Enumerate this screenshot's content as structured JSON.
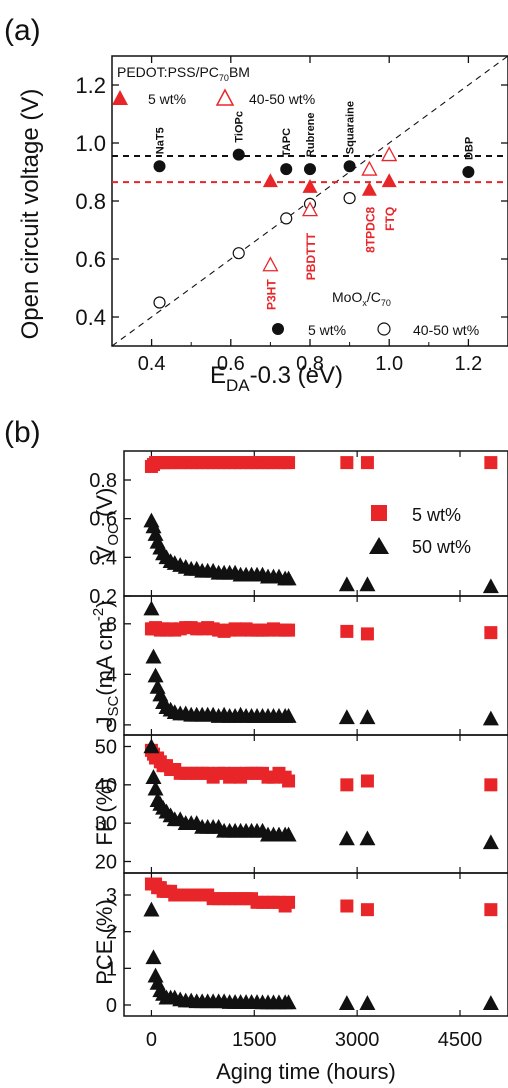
{
  "panels": {
    "a": "(a)",
    "b": "(b)"
  },
  "colors": {
    "red": "#e8262a",
    "black": "#111111",
    "red_dash": "#e8262a",
    "black_dash": "#111111"
  },
  "chart_data": [
    {
      "type": "scatter",
      "panel": "(a)",
      "xlabel_main": "E",
      "xlabel_sub": "DA",
      "xlabel_rest": "-0.3 (eV)",
      "ylabel": "Open circuit voltage (V)",
      "xlim": [
        0.3,
        1.3
      ],
      "ylim": [
        0.3,
        1.3
      ],
      "x_ticks": [
        0.4,
        0.6,
        0.8,
        1.0,
        1.2
      ],
      "x_tick_labels": [
        "0.4",
        "0.6",
        "0.8",
        "1.0",
        "1.2"
      ],
      "y_ticks": [
        0.4,
        0.6,
        0.8,
        1.0,
        1.2
      ],
      "y_tick_labels": [
        "0.4",
        "0.6",
        "0.8",
        "1.0",
        "1.2"
      ],
      "legend_pedot": {
        "title": "PEDOT:PSS/PC",
        "title_sub": "70",
        "title_rest": "BM",
        "filled_label": "5 wt%",
        "open_label": "40-50 wt%"
      },
      "legend_moox": {
        "title_a": "MoO",
        "title_sub1": "x",
        "title_b": "/C",
        "title_sub2": "70",
        "filled_label": "5 wt%",
        "open_label": "40-50 wt%"
      },
      "dashed_lines": {
        "black_y": 0.955,
        "red_y": 0.865,
        "diagonal": "y = x"
      },
      "series": [
        {
          "name": "MoOx/C70 5 wt%",
          "marker": "filled-circle",
          "color": "black",
          "points": [
            {
              "x": 0.42,
              "y": 0.92,
              "label": "NaT5"
            },
            {
              "x": 0.62,
              "y": 0.96,
              "label": "TiOPc"
            },
            {
              "x": 0.74,
              "y": 0.91,
              "label": "TAPC"
            },
            {
              "x": 0.8,
              "y": 0.91,
              "label": "Rubrene"
            },
            {
              "x": 0.9,
              "y": 0.92,
              "label": "Squaraine"
            },
            {
              "x": 1.2,
              "y": 0.9,
              "label": "DBP"
            }
          ]
        },
        {
          "name": "MoOx/C70 40-50 wt%",
          "marker": "open-circle",
          "color": "black",
          "points": [
            {
              "x": 0.42,
              "y": 0.45
            },
            {
              "x": 0.62,
              "y": 0.62
            },
            {
              "x": 0.74,
              "y": 0.74
            },
            {
              "x": 0.8,
              "y": 0.79
            },
            {
              "x": 0.9,
              "y": 0.81
            }
          ]
        },
        {
          "name": "PEDOT:PSS/PC70BM 5 wt%",
          "marker": "filled-triangle",
          "color": "red",
          "points": [
            {
              "x": 0.7,
              "y": 0.87
            },
            {
              "x": 0.8,
              "y": 0.85
            },
            {
              "x": 0.95,
              "y": 0.84
            },
            {
              "x": 1.0,
              "y": 0.87
            }
          ]
        },
        {
          "name": "PEDOT:PSS/PC70BM 40-50 wt%",
          "marker": "open-triangle",
          "color": "red",
          "points": [
            {
              "x": 0.7,
              "y": 0.58
            },
            {
              "x": 0.8,
              "y": 0.77
            },
            {
              "x": 0.95,
              "y": 0.91
            },
            {
              "x": 1.0,
              "y": 0.96
            }
          ]
        }
      ],
      "red_labels": [
        {
          "text": "P3HT",
          "x": 0.7
        },
        {
          "text": "PBDTTT",
          "x": 0.8
        },
        {
          "text": "8TPDC8",
          "x": 0.95
        },
        {
          "text": "FTQ",
          "x": 1.0
        }
      ]
    },
    {
      "type": "scatter",
      "panel": "(b)",
      "xlabel": "Aging time (hours)",
      "xlim": [
        -400,
        5200
      ],
      "x_ticks": [
        0,
        1500,
        3000,
        4500
      ],
      "x_tick_labels": [
        "0",
        "1500",
        "3000",
        "4500"
      ],
      "legend": {
        "series_5": "5 wt%",
        "series_50": "50 wt%"
      },
      "time_points": [
        0,
        30,
        60,
        90,
        130,
        170,
        220,
        280,
        340,
        420,
        500,
        580,
        660,
        740,
        820,
        900,
        980,
        1060,
        1140,
        1220,
        1300,
        1380,
        1460,
        1540,
        1620,
        1700,
        1780,
        1860,
        1950,
        2000,
        2850,
        3150,
        4950
      ],
      "subplots": [
        {
          "ylabel_a": "V",
          "ylabel_sub": "OC",
          "ylabel_b": " (V)",
          "ylim": [
            0.2,
            0.95
          ],
          "y_ticks": [
            0.2,
            0.4,
            0.6,
            0.8
          ],
          "y_tick_labels": [
            "0.2",
            "0.4",
            "0.6",
            "0.8"
          ],
          "series": [
            {
              "name": "5 wt%",
              "values": [
                0.87,
                0.88,
                0.89,
                0.89,
                0.89,
                0.89,
                0.89,
                0.89,
                0.89,
                0.89,
                0.89,
                0.89,
                0.89,
                0.89,
                0.89,
                0.89,
                0.89,
                0.89,
                0.89,
                0.89,
                0.89,
                0.89,
                0.89,
                0.89,
                0.89,
                0.89,
                0.89,
                0.89,
                0.89,
                0.89,
                0.89,
                0.89,
                0.89
              ]
            },
            {
              "name": "50 wt%",
              "values": [
                0.59,
                0.56,
                0.52,
                0.48,
                0.45,
                0.42,
                0.4,
                0.38,
                0.37,
                0.36,
                0.35,
                0.34,
                0.34,
                0.33,
                0.33,
                0.33,
                0.32,
                0.32,
                0.32,
                0.32,
                0.31,
                0.31,
                0.31,
                0.31,
                0.31,
                0.3,
                0.3,
                0.3,
                0.29,
                0.29,
                0.26,
                0.26,
                0.25
              ]
            }
          ]
        },
        {
          "ylabel_a": "J",
          "ylabel_sub": "SC",
          "ylabel_b": "(mA cm",
          "ylabel_sup": "-2",
          "ylabel_c": ")",
          "ylim": [
            -0.8,
            10.2
          ],
          "y_ticks": [
            0,
            4,
            8
          ],
          "y_tick_labels": [
            "0",
            "4",
            "8"
          ],
          "series": [
            {
              "name": "5 wt%",
              "values": [
                7.6,
                7.6,
                7.7,
                7.6,
                7.5,
                7.6,
                7.5,
                7.6,
                7.5,
                7.6,
                7.7,
                7.7,
                7.6,
                7.6,
                7.7,
                7.6,
                7.5,
                7.4,
                7.5,
                7.6,
                7.5,
                7.6,
                7.5,
                7.5,
                7.5,
                7.5,
                7.6,
                7.5,
                7.5,
                7.5,
                7.4,
                7.2,
                7.3
              ]
            },
            {
              "name": "50 wt%",
              "values": [
                9.2,
                5.4,
                3.9,
                3.0,
                2.4,
                1.8,
                1.4,
                1.2,
                1.0,
                0.9,
                0.9,
                0.8,
                0.8,
                0.8,
                0.8,
                0.8,
                0.7,
                0.8,
                0.7,
                0.7,
                0.8,
                0.7,
                0.7,
                0.7,
                0.7,
                0.7,
                0.7,
                0.7,
                0.7,
                0.7,
                0.6,
                0.6,
                0.5
              ]
            }
          ]
        },
        {
          "ylabel": "FF (%)",
          "ylim": [
            17,
            53
          ],
          "y_ticks": [
            20,
            30,
            40,
            50
          ],
          "y_tick_labels": [
            "20",
            "30",
            "40",
            "50"
          ],
          "series": [
            {
              "name": "5 wt%",
              "values": [
                49,
                48,
                47,
                47,
                46,
                45,
                45,
                44,
                44,
                43,
                43,
                43,
                43,
                43,
                43,
                42,
                43,
                43,
                42,
                43,
                42,
                43,
                43,
                43,
                43,
                42,
                42,
                43,
                42,
                41,
                40,
                41,
                40
              ]
            },
            {
              "name": "50 wt%",
              "values": [
                50,
                42,
                39,
                36,
                35,
                34,
                33,
                32,
                31,
                31,
                30,
                30,
                30,
                29,
                29,
                29,
                29,
                28,
                28,
                28,
                28,
                28,
                28,
                28,
                28,
                27,
                27,
                27,
                27,
                27,
                26,
                26,
                25
              ]
            }
          ]
        },
        {
          "ylabel": "PCE (%)",
          "ylim": [
            -0.3,
            3.6
          ],
          "y_ticks": [
            0,
            1,
            2,
            3
          ],
          "y_tick_labels": [
            "0",
            "1",
            "2",
            "3"
          ],
          "series": [
            {
              "name": "5 wt%",
              "values": [
                3.3,
                3.3,
                3.3,
                3.2,
                3.2,
                3.1,
                3.1,
                3.1,
                3.0,
                3.0,
                3.0,
                3.0,
                3.0,
                3.0,
                3.0,
                2.9,
                2.9,
                2.9,
                2.9,
                2.9,
                2.9,
                2.9,
                2.9,
                2.8,
                2.8,
                2.8,
                2.8,
                2.8,
                2.7,
                2.8,
                2.7,
                2.6,
                2.6
              ]
            },
            {
              "name": "50 wt%",
              "values": [
                2.6,
                1.3,
                0.8,
                0.6,
                0.4,
                0.3,
                0.2,
                0.2,
                0.2,
                0.15,
                0.12,
                0.12,
                0.1,
                0.1,
                0.1,
                0.1,
                0.1,
                0.1,
                0.08,
                0.08,
                0.08,
                0.08,
                0.08,
                0.08,
                0.07,
                0.07,
                0.07,
                0.07,
                0.07,
                0.07,
                0.05,
                0.05,
                0.05
              ]
            }
          ]
        }
      ]
    }
  ]
}
